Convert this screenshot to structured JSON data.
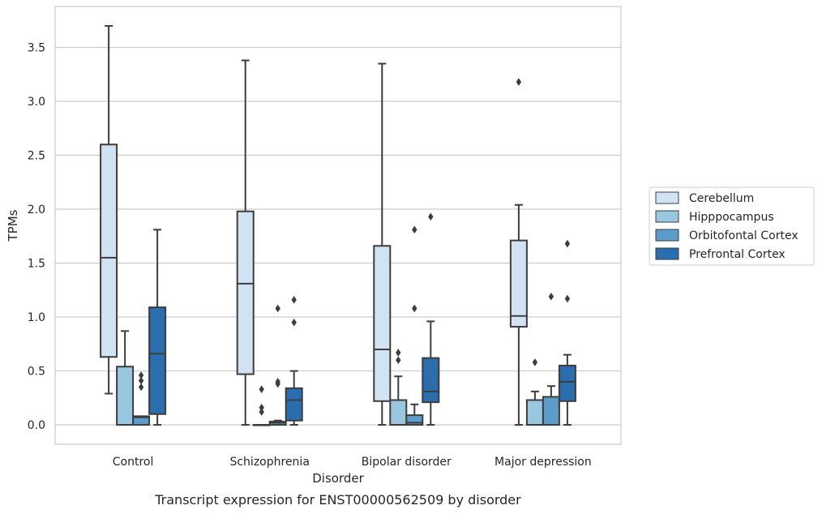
{
  "chart_data": {
    "type": "box",
    "xlabel": "Disorder",
    "ylabel": "TPMs",
    "caption": "Transcript expression for ENST00000562509 by disorder",
    "ylim": [
      -0.18,
      3.88
    ],
    "yticks": [
      "0.0",
      "0.5",
      "1.0",
      "1.5",
      "2.0",
      "2.5",
      "3.0",
      "3.5"
    ],
    "grid": "horizontal",
    "legend_position": "right",
    "categories": [
      "Control",
      "Schizophrenia",
      "Bipolar disorder",
      "Major depression"
    ],
    "series": [
      {
        "name": "Cerebellum",
        "color": "#d1e2f2",
        "boxes": [
          {
            "whisker_low": 0.29,
            "q1": 0.63,
            "median": 1.55,
            "q3": 2.6,
            "whisker_high": 3.7,
            "outliers": []
          },
          {
            "whisker_low": 0.0,
            "q1": 0.47,
            "median": 1.31,
            "q3": 1.98,
            "whisker_high": 3.38,
            "outliers": []
          },
          {
            "whisker_low": 0.0,
            "q1": 0.22,
            "median": 0.7,
            "q3": 1.66,
            "whisker_high": 3.35,
            "outliers": []
          },
          {
            "whisker_low": 0.0,
            "q1": 0.91,
            "median": 1.01,
            "q3": 1.71,
            "whisker_high": 2.04,
            "outliers": [
              3.18
            ]
          }
        ]
      },
      {
        "name": "Hipppocampus",
        "color": "#9ac7e0",
        "boxes": [
          {
            "whisker_low": 0.0,
            "q1": 0.0,
            "median": 0.0,
            "q3": 0.54,
            "whisker_high": 0.87,
            "outliers": []
          },
          {
            "whisker_low": 0.0,
            "q1": 0.0,
            "median": 0.0,
            "q3": 0.0,
            "whisker_high": 0.0,
            "outliers": [
              0.12,
              0.16,
              0.33
            ]
          },
          {
            "whisker_low": 0.0,
            "q1": 0.0,
            "median": 0.0,
            "q3": 0.23,
            "whisker_high": 0.45,
            "outliers": [
              0.6,
              0.67
            ]
          },
          {
            "whisker_low": 0.0,
            "q1": 0.0,
            "median": 0.0,
            "q3": 0.23,
            "whisker_high": 0.31,
            "outliers": [
              0.58
            ]
          }
        ]
      },
      {
        "name": "Orbitofontal Cortex",
        "color": "#5b9ccb",
        "boxes": [
          {
            "whisker_low": 0.0,
            "q1": 0.0,
            "median": 0.07,
            "q3": 0.08,
            "whisker_high": 0.08,
            "outliers": [
              0.35,
              0.41,
              0.46
            ]
          },
          {
            "whisker_low": 0.0,
            "q1": 0.0,
            "median": 0.02,
            "q3": 0.03,
            "whisker_high": 0.04,
            "outliers": [
              0.38,
              0.4,
              1.08
            ]
          },
          {
            "whisker_low": 0.0,
            "q1": 0.0,
            "median": 0.02,
            "q3": 0.09,
            "whisker_high": 0.19,
            "outliers": [
              1.08,
              1.81
            ]
          },
          {
            "whisker_low": 0.0,
            "q1": 0.0,
            "median": 0.0,
            "q3": 0.26,
            "whisker_high": 0.36,
            "outliers": [
              1.19
            ]
          }
        ]
      },
      {
        "name": "Prefrontal Cortex",
        "color": "#2a6eaf",
        "boxes": [
          {
            "whisker_low": 0.0,
            "q1": 0.1,
            "median": 0.66,
            "q3": 1.09,
            "whisker_high": 1.81,
            "outliers": []
          },
          {
            "whisker_low": 0.0,
            "q1": 0.04,
            "median": 0.23,
            "q3": 0.34,
            "whisker_high": 0.5,
            "outliers": [
              0.95,
              1.16
            ]
          },
          {
            "whisker_low": 0.0,
            "q1": 0.21,
            "median": 0.31,
            "q3": 0.62,
            "whisker_high": 0.96,
            "outliers": [
              1.93
            ]
          },
          {
            "whisker_low": 0.0,
            "q1": 0.22,
            "median": 0.4,
            "q3": 0.55,
            "whisker_high": 0.65,
            "outliers": [
              1.17,
              1.68
            ]
          }
        ]
      }
    ]
  }
}
